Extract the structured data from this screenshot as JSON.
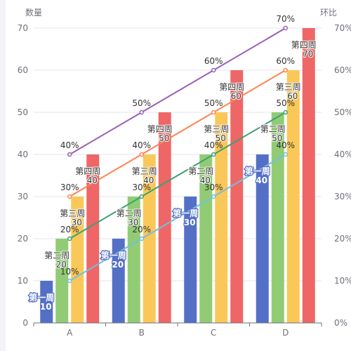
{
  "chart_data": {
    "type": "bar",
    "categories": [
      "A",
      "B",
      "C",
      "D"
    ],
    "y_axis_left": {
      "label": "数量",
      "min": 0,
      "max": 70,
      "ticks": [
        0,
        10,
        20,
        30,
        40,
        50,
        60,
        70
      ]
    },
    "y_axis_right": {
      "label": "环比",
      "min": 0,
      "max": 70,
      "ticks": [
        "0%",
        "10%",
        "20%",
        "30%",
        "40%",
        "50%",
        "60%",
        "70%"
      ]
    },
    "grid": true,
    "bar_series": [
      {
        "name": "第一周",
        "color": "#5470c6",
        "values": [
          10,
          20,
          30,
          40
        ]
      },
      {
        "name": "第二周",
        "color": "#91cc75",
        "values": [
          20,
          30,
          40,
          50
        ]
      },
      {
        "name": "第三周",
        "color": "#fac858",
        "values": [
          30,
          40,
          50,
          60
        ]
      },
      {
        "name": "第四周",
        "color": "#ee6666",
        "values": [
          40,
          50,
          60,
          70
        ]
      }
    ],
    "line_series": [
      {
        "color": "#73c0de",
        "values": [
          10,
          20,
          30,
          40
        ],
        "labels": [
          "10%",
          "20%",
          "30%",
          "40%"
        ]
      },
      {
        "color": "#3ba272",
        "values": [
          20,
          30,
          40,
          50
        ],
        "labels": [
          "20%",
          "30%",
          "40%",
          "50%"
        ]
      },
      {
        "color": "#fc8452",
        "values": [
          30,
          40,
          50,
          60
        ],
        "labels": [
          "30%",
          "40%",
          "50%",
          "60%"
        ]
      },
      {
        "color": "#9a60b4",
        "values": [
          40,
          50,
          60,
          70
        ],
        "labels": [
          "40%",
          "50%",
          "60%",
          "70%"
        ]
      }
    ]
  }
}
